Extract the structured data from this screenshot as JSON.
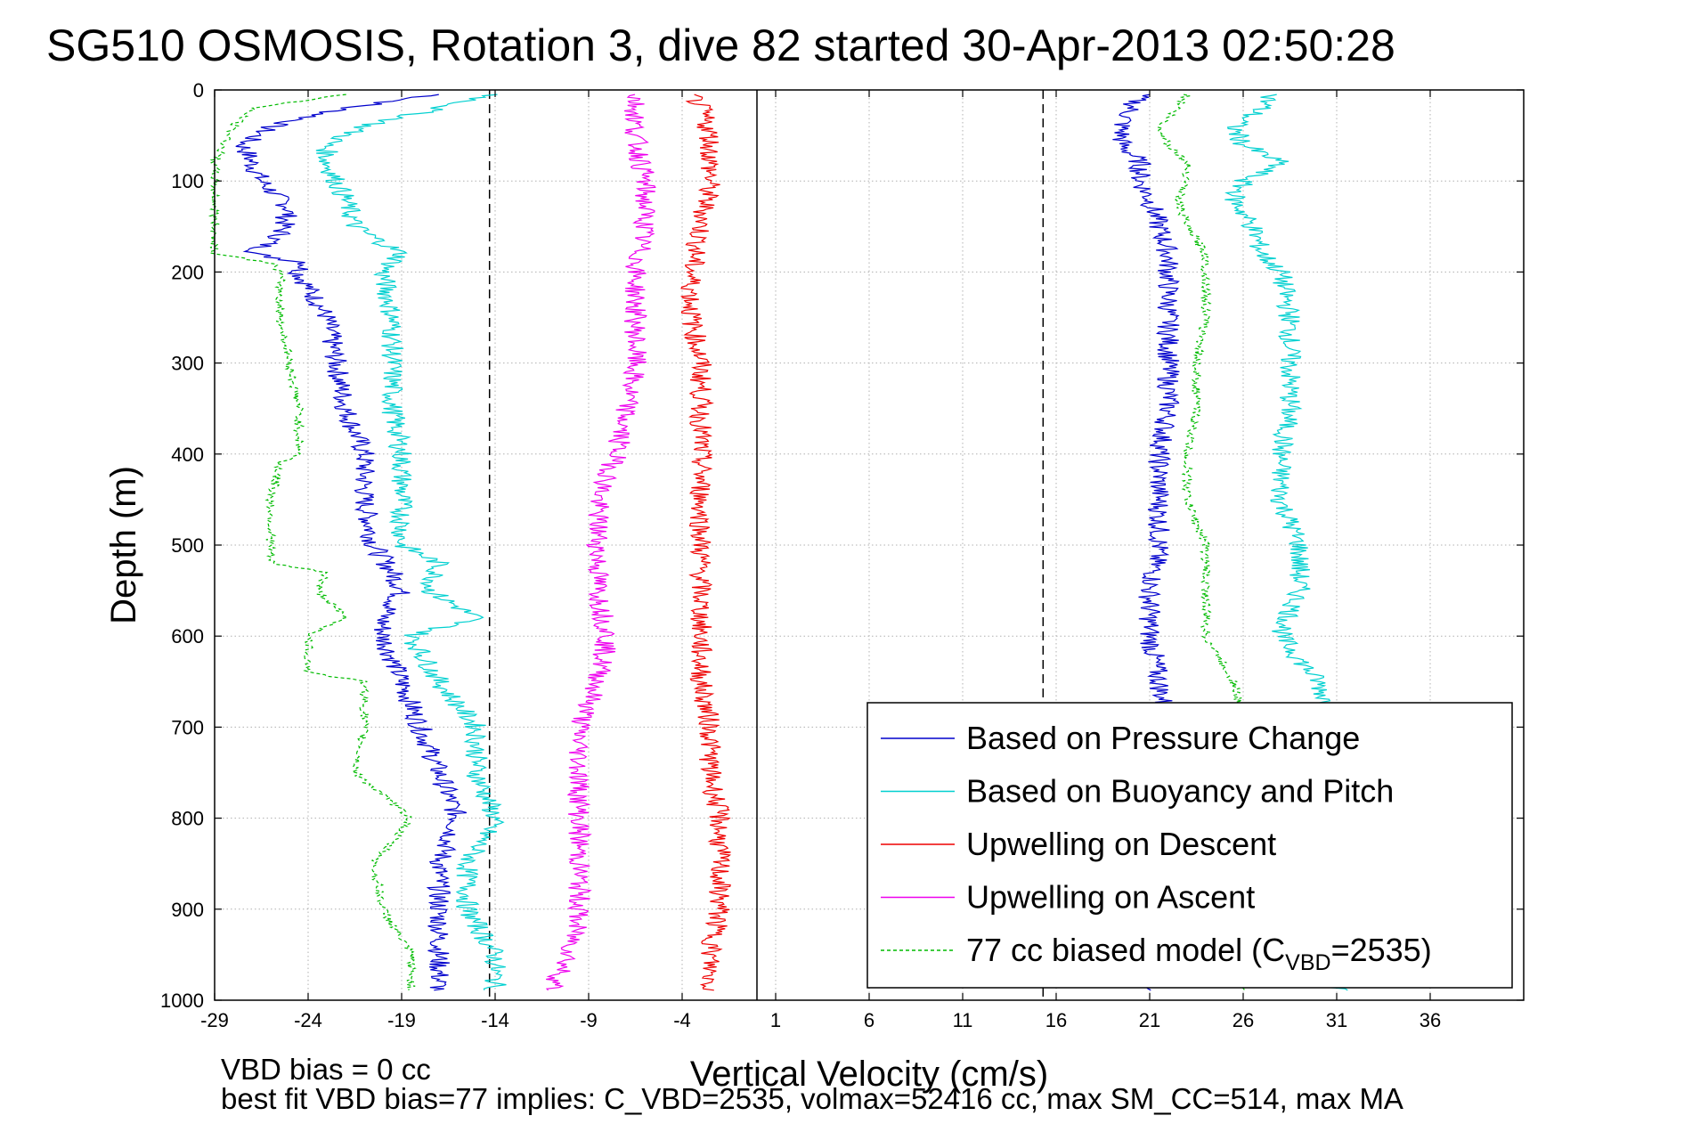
{
  "chart_data": {
    "type": "line",
    "title": "SG510 OSMOSIS, Rotation 3, dive 82 started 30-Apr-2013 02:50:28",
    "xlabel": "Vertical Velocity (cm/s)",
    "ylabel": "Depth (m)",
    "xlim": [
      -29,
      41
    ],
    "ylim": [
      0,
      1000
    ],
    "y_reversed": true,
    "xticks": [
      -29,
      -24,
      -19,
      -14,
      -9,
      -4,
      1,
      6,
      11,
      16,
      21,
      26,
      31,
      36
    ],
    "yticks": [
      0,
      100,
      200,
      300,
      400,
      500,
      600,
      700,
      800,
      900,
      1000
    ],
    "grid": true,
    "legend_position": "lower-right",
    "vlines": [
      {
        "x": -14.3,
        "style": "dashed",
        "color": "#000000"
      },
      {
        "x": 0,
        "style": "solid",
        "color": "#000000"
      },
      {
        "x": 15.3,
        "style": "dashed",
        "color": "#000000"
      }
    ],
    "series": [
      {
        "name": "Based on Pressure Change",
        "color": "#0000cc",
        "style": "solid",
        "segments": [
          {
            "depth": [
              5,
              20,
              40,
              60,
              80,
              100,
              130,
              160,
              180,
              190,
              200,
              250,
              300,
              350,
              400,
              450,
              500,
              530,
              550,
              580,
              600,
              650,
              700,
              750,
              800,
              850,
              900,
              950,
              990
            ],
            "values": [
              -17,
              -22,
              -26,
              -27.5,
              -27,
              -26.5,
              -25,
              -25.5,
              -27,
              -24,
              -24.5,
              -23,
              -22.5,
              -22,
              -21,
              -21,
              -20.5,
              -19.5,
              -19,
              -20,
              -20,
              -19,
              -18,
              -17,
              -16,
              -17,
              -17,
              -17,
              -17
            ]
          },
          {
            "depth": [
              5,
              20,
              40,
              60,
              80,
              100,
              120,
              150,
              180,
              200,
              250,
              300,
              350,
              400,
              450,
              500,
              550,
              600,
              650,
              700,
              750,
              800,
              850,
              900,
              950,
              990
            ],
            "values": [
              20.5,
              20,
              19.5,
              19.5,
              20.5,
              20.5,
              21,
              21.5,
              22,
              22,
              22,
              22,
              22,
              21.5,
              21.5,
              21.5,
              21,
              21,
              21.5,
              22,
              22,
              22,
              22,
              22,
              22,
              21
            ]
          }
        ]
      },
      {
        "name": "Based on Buoyancy and Pitch",
        "color": "#00d0d0",
        "style": "solid",
        "segments": [
          {
            "depth": [
              5,
              20,
              40,
              60,
              80,
              100,
              120,
              150,
              180,
              200,
              250,
              300,
              350,
              400,
              450,
              500,
              520,
              550,
              580,
              600,
              650,
              700,
              750,
              800,
              850,
              900,
              950,
              990
            ],
            "values": [
              -14,
              -17,
              -21,
              -23,
              -23,
              -22.5,
              -22,
              -21.5,
              -19,
              -20,
              -19.5,
              -19.5,
              -19.5,
              -19,
              -19,
              -19,
              -17,
              -17.5,
              -15,
              -18.5,
              -17,
              -15,
              -15,
              -14,
              -15.5,
              -15.5,
              -14,
              -14
            ]
          },
          {
            "depth": [
              5,
              20,
              40,
              60,
              80,
              100,
              120,
              150,
              180,
              200,
              250,
              300,
              350,
              400,
              450,
              500,
              550,
              600,
              650,
              700,
              750,
              800,
              850,
              900,
              950,
              990
            ],
            "values": [
              27.5,
              27,
              25.5,
              26,
              28,
              26,
              25.5,
              26.5,
              27,
              28,
              28.5,
              28.5,
              28.5,
              28,
              28,
              29,
              29,
              28,
              30,
              31,
              31.5,
              31.5,
              31.5,
              31.5,
              31.5,
              31
            ]
          }
        ]
      },
      {
        "name": "Upwelling on Descent",
        "color": "#ee0000",
        "style": "solid",
        "segments": [
          {
            "depth": [
              5,
              20,
              50,
              100,
              150,
              200,
              250,
              300,
              350,
              400,
              450,
              500,
              550,
              600,
              650,
              700,
              750,
              800,
              850,
              900,
              950,
              990
            ],
            "values": [
              -3.5,
              -3,
              -2.5,
              -2.5,
              -3,
              -3.5,
              -3.5,
              -3,
              -3,
              -3,
              -3,
              -3,
              -3,
              -3,
              -3,
              -2.5,
              -2.5,
              -2,
              -2,
              -2,
              -2.5,
              -2.5
            ]
          }
        ]
      },
      {
        "name": "Upwelling on Ascent",
        "color": "#ee00ee",
        "style": "solid",
        "segments": [
          {
            "depth": [
              5,
              20,
              50,
              100,
              150,
              200,
              250,
              300,
              350,
              400,
              450,
              500,
              550,
              600,
              650,
              700,
              750,
              800,
              850,
              900,
              950,
              990
            ],
            "values": [
              -6.5,
              -6.5,
              -6.5,
              -6,
              -6,
              -6.5,
              -6.5,
              -6.5,
              -7,
              -7.5,
              -8.5,
              -8.5,
              -8.5,
              -8,
              -8.5,
              -9.5,
              -9.5,
              -9.5,
              -9.5,
              -9.5,
              -10,
              -11
            ]
          }
        ]
      },
      {
        "name": "77 cc biased model (C_VBD=2535)",
        "color": "#00bb00",
        "style": "dashed",
        "segments": [
          {
            "depth": [
              5,
              20,
              40,
              60,
              80,
              100,
              130,
              160,
              180,
              190,
              200,
              250,
              300,
              350,
              400,
              410,
              450,
              500,
              520,
              530,
              550,
              580,
              600,
              640,
              650,
              700,
              750,
              800,
              850,
              900,
              950,
              990
            ],
            "values": [
              -22,
              -27,
              -28,
              -28.5,
              -29,
              -29,
              -29,
              -29,
              -29,
              -26,
              -25.5,
              -25.5,
              -25,
              -24.5,
              -24.5,
              -25.5,
              -26,
              -26,
              -26,
              -23,
              -23.5,
              -22,
              -24,
              -24,
              -21,
              -21,
              -21.5,
              -18.5,
              -20.5,
              -20,
              -18.5,
              -18.5
            ]
          },
          {
            "depth": [
              5,
              20,
              40,
              60,
              80,
              100,
              120,
              150,
              180,
              200,
              250,
              300,
              350,
              400,
              450,
              500,
              550,
              600,
              650,
              700,
              750,
              800,
              850,
              900,
              950,
              990
            ],
            "values": [
              23,
              22.5,
              21.5,
              22,
              23,
              23,
              22.5,
              23,
              24,
              24,
              24,
              23.5,
              23.5,
              23,
              23,
              24,
              24,
              24,
              25.5,
              26,
              26,
              26,
              26,
              26,
              26,
              26
            ]
          }
        ]
      }
    ],
    "annotations": [
      {
        "text": "VBD bias = 0 cc"
      },
      {
        "text": "best fit VBD bias=77 implies: C_VBD=2535, volmax=52416 cc, max SM_CC=514, max MA"
      }
    ]
  }
}
